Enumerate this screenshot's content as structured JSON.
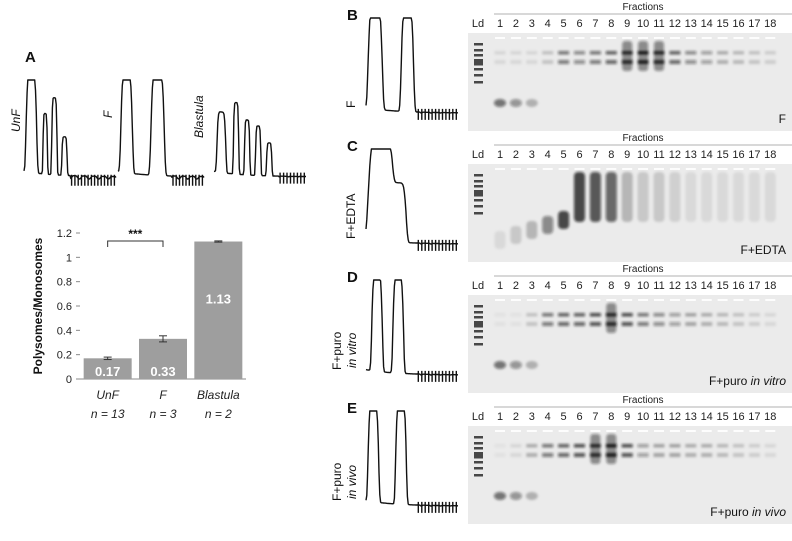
{
  "panel_A": {
    "letter": "A",
    "trace_labels": [
      "UnF",
      "F",
      "Blastula"
    ],
    "chart_data": {
      "type": "bar",
      "categories": [
        "UnF",
        "F",
        "Blastula"
      ],
      "values": [
        0.17,
        0.33,
        1.13
      ],
      "value_labels": [
        "0.17",
        "0.33",
        "1.13"
      ],
      "errors": [
        0.01,
        0.025,
        0.005
      ],
      "sample_sizes": [
        "n = 13",
        "n = 3",
        "n = 2"
      ],
      "ylabel": "Polysomes/Monosomes",
      "ylim": [
        0,
        1.2
      ],
      "yticks": [
        "0",
        "0.2",
        "0.4",
        "0.6",
        "0.8",
        "1",
        "1.2"
      ],
      "significance": {
        "between": [
          "UnF",
          "F"
        ],
        "label": "***"
      },
      "bar_color": "#9e9e9e"
    }
  },
  "gel_panels": [
    {
      "letter": "B",
      "trace_label": "F",
      "gel_label": "F",
      "fractions_title": "Fractions",
      "ladder_label": "Ld",
      "lanes": [
        "1",
        "2",
        "3",
        "4",
        "5",
        "6",
        "7",
        "8",
        "9",
        "10",
        "11",
        "12",
        "13",
        "14",
        "15",
        "16",
        "17",
        "18"
      ]
    },
    {
      "letter": "C",
      "trace_label": "F+EDTA",
      "gel_label": "F+EDTA",
      "fractions_title": "Fractions",
      "ladder_label": "Ld",
      "lanes": [
        "1",
        "2",
        "3",
        "4",
        "5",
        "6",
        "7",
        "8",
        "9",
        "10",
        "11",
        "12",
        "13",
        "14",
        "15",
        "16",
        "17",
        "18"
      ]
    },
    {
      "letter": "D",
      "trace_label_main": "F+puro",
      "trace_label_italic": "in vitro",
      "gel_label_main": "F+puro ",
      "gel_label_italic": "in vitro",
      "fractions_title": "Fractions",
      "ladder_label": "Ld",
      "lanes": [
        "1",
        "2",
        "3",
        "4",
        "5",
        "6",
        "7",
        "8",
        "9",
        "10",
        "11",
        "12",
        "13",
        "14",
        "15",
        "16",
        "17",
        "18"
      ]
    },
    {
      "letter": "E",
      "trace_label_main": "F+puro",
      "trace_label_italic": "in vivo",
      "gel_label_main": "F+puro ",
      "gel_label_italic": "in vivo",
      "fractions_title": "Fractions",
      "ladder_label": "Ld",
      "lanes": [
        "1",
        "2",
        "3",
        "4",
        "5",
        "6",
        "7",
        "8",
        "9",
        "10",
        "11",
        "12",
        "13",
        "14",
        "15",
        "16",
        "17",
        "18"
      ]
    }
  ]
}
